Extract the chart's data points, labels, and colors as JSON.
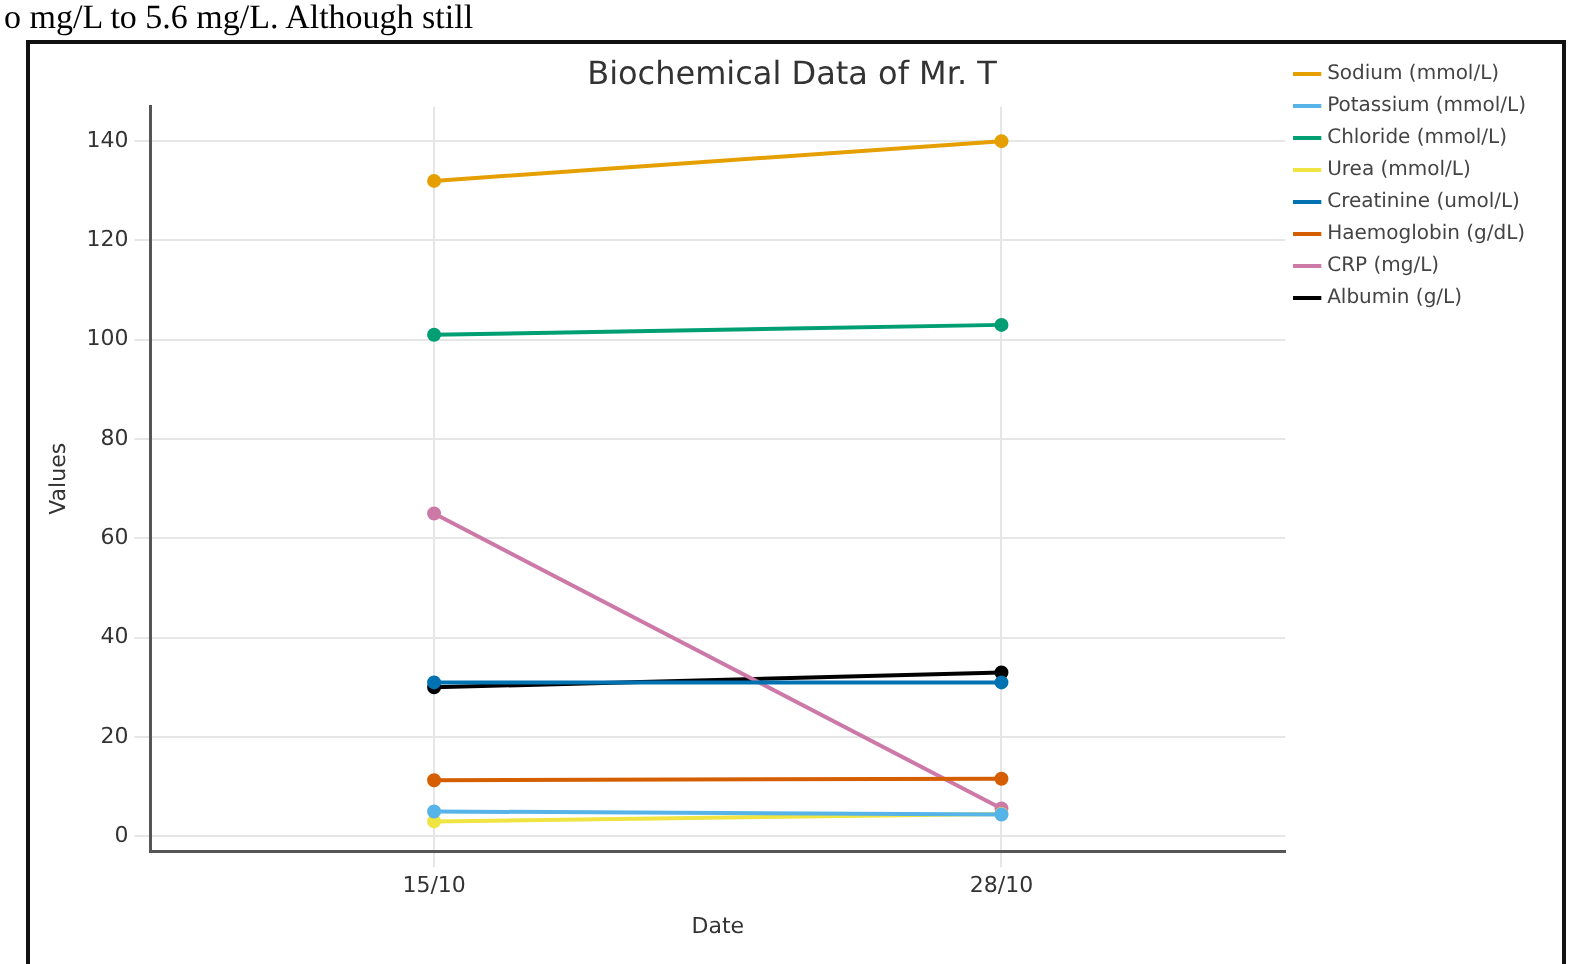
{
  "chart_data": {
    "type": "line",
    "title": "Biochemical Data of Mr. T",
    "xlabel": "Date",
    "ylabel": "Values",
    "annotations": [
      "o mg/L to 5.6 mg/L. Although still"
    ],
    "categories": [
      "15/10",
      "28/10"
    ],
    "series": [
      {
        "name": "Sodium (mmol/L)",
        "color": "#e69f00",
        "values": [
          132,
          140
        ]
      },
      {
        "name": "Potassium (mmol/L)",
        "color": "#56b4e9",
        "values": [
          5,
          4.4
        ]
      },
      {
        "name": "Chloride (mmol/L)",
        "color": "#009e73",
        "values": [
          101,
          103
        ]
      },
      {
        "name": "Urea (mmol/L)",
        "color": "#f0e442",
        "values": [
          3,
          4.5
        ]
      },
      {
        "name": "Creatinine (umol/L)",
        "color": "#0072b2",
        "values": [
          31,
          31
        ]
      },
      {
        "name": "Haemoglobin (g/dL)",
        "color": "#d55e00",
        "values": [
          11.3,
          11.6
        ]
      },
      {
        "name": "CRP (mg/L)",
        "color": "#cc79a7",
        "values": [
          65,
          5.6
        ]
      },
      {
        "name": "Albumin (g/L)",
        "color": "#000000",
        "values": [
          30,
          33
        ]
      }
    ],
    "ylim": [
      -3,
      147
    ],
    "yticks": [
      0,
      20,
      40,
      60,
      80,
      100,
      120,
      140
    ],
    "grid": true,
    "legend": "top right",
    "marker": "circle",
    "line_style": "solid"
  }
}
